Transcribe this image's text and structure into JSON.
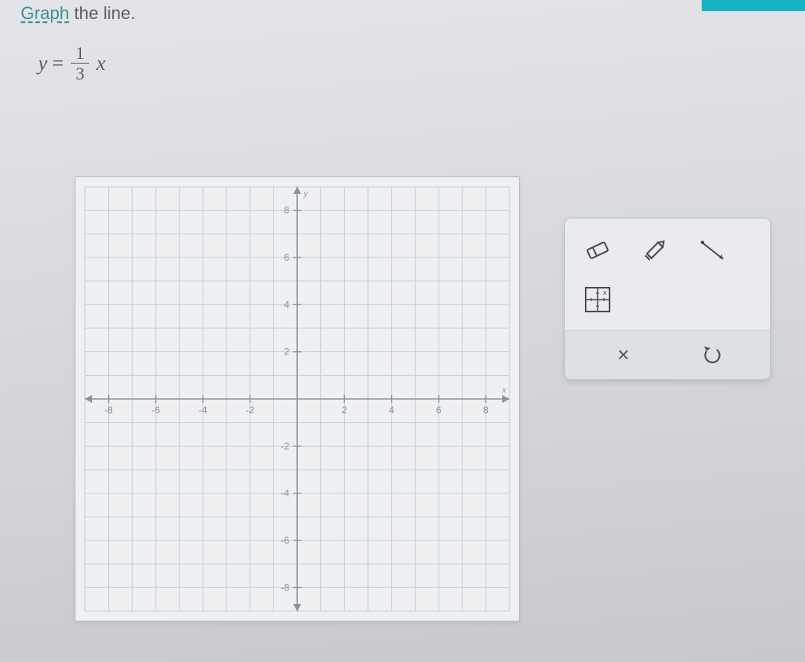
{
  "instruction": {
    "link_text": "Graph",
    "rest_text": " the line."
  },
  "equation": {
    "lhs": "y",
    "equals": "=",
    "numerator": "1",
    "denominator": "3",
    "rhs_var": "x"
  },
  "graph": {
    "type": "cartesian-grid",
    "background_color": "#eef0f2",
    "grid_color": "#c8ccd2",
    "axis_color": "#8d9197",
    "tick_label_color": "#8a8d93",
    "x_axis_label": "x",
    "y_axis_label": "y",
    "xlim": [
      -9,
      9
    ],
    "ylim": [
      -9,
      9
    ],
    "grid_step": 1,
    "tick_step": 2,
    "x_tick_labels": [
      "-8",
      "-6",
      "-4",
      "-2",
      "2",
      "4",
      "6",
      "8"
    ],
    "x_tick_values": [
      -8,
      -6,
      -4,
      -2,
      2,
      4,
      6,
      8
    ],
    "y_tick_labels": [
      "8",
      "6",
      "4",
      "2",
      "-2",
      "-4",
      "-6",
      "-8"
    ],
    "y_tick_values": [
      8,
      6,
      4,
      2,
      -2,
      -4,
      -6,
      -8
    ],
    "label_fontsize": 12
  },
  "tools": {
    "eraser": "eraser",
    "pencil": "pencil",
    "line": "line",
    "point_on_grid": "point-grid",
    "close": "×",
    "undo": "↺"
  },
  "colors": {
    "banner": "#17b2c4",
    "page_bg": "#d8d9dc",
    "toolbox_bg": "#e9ebee",
    "toolbox_footer_bg": "#dde0e4",
    "text": "#5b5c5f"
  }
}
